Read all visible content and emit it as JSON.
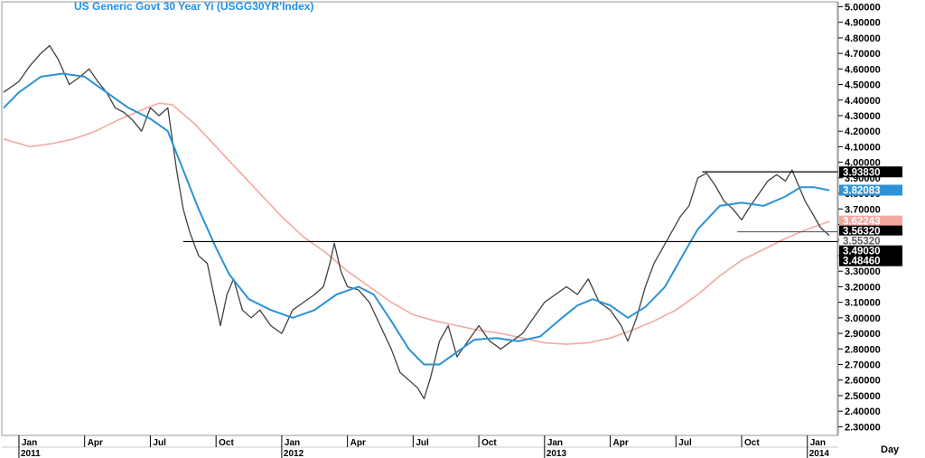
{
  "chart_data": {
    "type": "line",
    "title": "US  Generic  Govt  30  Year  Yi  (USGG30YR'Index)",
    "x_unit_label": "Day",
    "ylim": [
      2.25,
      5.02
    ],
    "y_ticks": [
      "5.00000",
      "4.90000",
      "4.80000",
      "4.70000",
      "4.60000",
      "4.50000",
      "4.40000",
      "4.30000",
      "4.20000",
      "4.10000",
      "4.00000",
      "3.90000",
      "3.80000",
      "3.70000",
      "3.60000",
      "3.50000",
      "3.40000",
      "3.30000",
      "3.20000",
      "3.10000",
      "3.00000",
      "2.90000",
      "2.80000",
      "2.70000",
      "2.60000",
      "2.50000",
      "2.40000",
      "2.30000"
    ],
    "x_ticks": [
      {
        "label": "Jan",
        "year": "2011",
        "t": 0
      },
      {
        "label": "Apr",
        "t": 3
      },
      {
        "label": "Jul",
        "t": 6
      },
      {
        "label": "Oct",
        "t": 9
      },
      {
        "label": "Jan",
        "year": "2012",
        "t": 12
      },
      {
        "label": "Apr",
        "t": 15
      },
      {
        "label": "Jul",
        "t": 18
      },
      {
        "label": "Oct",
        "t": 21
      },
      {
        "label": "Jan",
        "year": "2013",
        "t": 24
      },
      {
        "label": "Apr",
        "t": 27
      },
      {
        "label": "Jul",
        "t": 30
      },
      {
        "label": "Oct",
        "t": 33
      },
      {
        "label": "Jan",
        "year": "2014",
        "t": 36
      }
    ],
    "x_range_months": [
      -0.7,
      37.0
    ],
    "series": [
      {
        "role": "price",
        "color": "#404040",
        "points": [
          [
            -0.7,
            4.45
          ],
          [
            0.0,
            4.52
          ],
          [
            0.5,
            4.62
          ],
          [
            1.0,
            4.7
          ],
          [
            1.4,
            4.75
          ],
          [
            1.8,
            4.66
          ],
          [
            2.3,
            4.5
          ],
          [
            2.8,
            4.55
          ],
          [
            3.2,
            4.6
          ],
          [
            3.6,
            4.52
          ],
          [
            4.0,
            4.45
          ],
          [
            4.4,
            4.35
          ],
          [
            4.8,
            4.32
          ],
          [
            5.2,
            4.27
          ],
          [
            5.6,
            4.2
          ],
          [
            6.0,
            4.35
          ],
          [
            6.4,
            4.3
          ],
          [
            6.8,
            4.35
          ],
          [
            7.2,
            3.95
          ],
          [
            7.5,
            3.7
          ],
          [
            7.8,
            3.55
          ],
          [
            8.2,
            3.4
          ],
          [
            8.6,
            3.35
          ],
          [
            8.9,
            3.15
          ],
          [
            9.2,
            2.95
          ],
          [
            9.5,
            3.15
          ],
          [
            9.8,
            3.25
          ],
          [
            10.2,
            3.05
          ],
          [
            10.6,
            3.0
          ],
          [
            11.0,
            3.05
          ],
          [
            11.5,
            2.95
          ],
          [
            12.0,
            2.9
          ],
          [
            12.5,
            3.05
          ],
          [
            13.0,
            3.1
          ],
          [
            13.5,
            3.15
          ],
          [
            13.9,
            3.2
          ],
          [
            14.2,
            3.35
          ],
          [
            14.4,
            3.48
          ],
          [
            14.7,
            3.3
          ],
          [
            15.0,
            3.2
          ],
          [
            15.5,
            3.18
          ],
          [
            16.0,
            3.1
          ],
          [
            16.5,
            2.95
          ],
          [
            17.0,
            2.8
          ],
          [
            17.4,
            2.65
          ],
          [
            17.8,
            2.6
          ],
          [
            18.2,
            2.55
          ],
          [
            18.5,
            2.48
          ],
          [
            18.8,
            2.62
          ],
          [
            19.2,
            2.85
          ],
          [
            19.6,
            2.95
          ],
          [
            20.0,
            2.75
          ],
          [
            20.5,
            2.85
          ],
          [
            21.0,
            2.95
          ],
          [
            21.5,
            2.85
          ],
          [
            22.0,
            2.8
          ],
          [
            22.5,
            2.85
          ],
          [
            23.0,
            2.9
          ],
          [
            23.5,
            3.0
          ],
          [
            24.0,
            3.1
          ],
          [
            24.5,
            3.15
          ],
          [
            25.0,
            3.2
          ],
          [
            25.5,
            3.15
          ],
          [
            26.0,
            3.25
          ],
          [
            26.5,
            3.1
          ],
          [
            27.0,
            3.05
          ],
          [
            27.5,
            2.95
          ],
          [
            27.8,
            2.85
          ],
          [
            28.2,
            3.0
          ],
          [
            28.6,
            3.2
          ],
          [
            29.0,
            3.35
          ],
          [
            29.4,
            3.45
          ],
          [
            29.8,
            3.55
          ],
          [
            30.2,
            3.65
          ],
          [
            30.6,
            3.72
          ],
          [
            31.0,
            3.9
          ],
          [
            31.4,
            3.93
          ],
          [
            31.8,
            3.85
          ],
          [
            32.2,
            3.75
          ],
          [
            32.6,
            3.7
          ],
          [
            33.0,
            3.63
          ],
          [
            33.4,
            3.72
          ],
          [
            33.8,
            3.8
          ],
          [
            34.2,
            3.88
          ],
          [
            34.6,
            3.92
          ],
          [
            35.0,
            3.88
          ],
          [
            35.3,
            3.95
          ],
          [
            35.6,
            3.85
          ],
          [
            35.9,
            3.75
          ],
          [
            36.2,
            3.68
          ],
          [
            36.6,
            3.58
          ],
          [
            37.0,
            3.53
          ]
        ]
      },
      {
        "role": "moving-average-short",
        "color": "#2b93d6",
        "points": [
          [
            -0.7,
            4.35
          ],
          [
            0.0,
            4.45
          ],
          [
            1.0,
            4.55
          ],
          [
            2.0,
            4.57
          ],
          [
            3.0,
            4.55
          ],
          [
            4.0,
            4.45
          ],
          [
            5.0,
            4.35
          ],
          [
            6.0,
            4.28
          ],
          [
            6.8,
            4.2
          ],
          [
            7.5,
            3.95
          ],
          [
            8.2,
            3.7
          ],
          [
            9.0,
            3.45
          ],
          [
            9.6,
            3.28
          ],
          [
            10.5,
            3.12
          ],
          [
            11.5,
            3.05
          ],
          [
            12.5,
            3.0
          ],
          [
            13.5,
            3.05
          ],
          [
            14.5,
            3.15
          ],
          [
            15.5,
            3.2
          ],
          [
            16.2,
            3.15
          ],
          [
            17.0,
            2.98
          ],
          [
            17.8,
            2.8
          ],
          [
            18.5,
            2.7
          ],
          [
            19.2,
            2.7
          ],
          [
            20.0,
            2.78
          ],
          [
            20.8,
            2.86
          ],
          [
            21.8,
            2.87
          ],
          [
            22.8,
            2.85
          ],
          [
            23.8,
            2.88
          ],
          [
            24.8,
            3.0
          ],
          [
            25.5,
            3.08
          ],
          [
            26.2,
            3.12
          ],
          [
            27.0,
            3.08
          ],
          [
            27.8,
            3.0
          ],
          [
            28.6,
            3.07
          ],
          [
            29.5,
            3.2
          ],
          [
            30.3,
            3.4
          ],
          [
            31.0,
            3.57
          ],
          [
            32.0,
            3.72
          ],
          [
            33.0,
            3.74
          ],
          [
            34.0,
            3.72
          ],
          [
            35.0,
            3.78
          ],
          [
            35.7,
            3.84
          ],
          [
            36.3,
            3.84
          ],
          [
            37.0,
            3.82
          ]
        ]
      },
      {
        "role": "moving-average-long",
        "color": "#f4a8a0",
        "points": [
          [
            -0.7,
            4.15
          ],
          [
            0.5,
            4.1
          ],
          [
            1.5,
            4.12
          ],
          [
            2.5,
            4.15
          ],
          [
            3.5,
            4.2
          ],
          [
            4.5,
            4.27
          ],
          [
            5.5,
            4.33
          ],
          [
            6.4,
            4.38
          ],
          [
            7.0,
            4.37
          ],
          [
            8.0,
            4.25
          ],
          [
            9.0,
            4.1
          ],
          [
            10.0,
            3.95
          ],
          [
            11.0,
            3.8
          ],
          [
            12.0,
            3.65
          ],
          [
            13.0,
            3.52
          ],
          [
            14.0,
            3.42
          ],
          [
            15.0,
            3.3
          ],
          [
            16.0,
            3.2
          ],
          [
            17.0,
            3.1
          ],
          [
            18.0,
            3.02
          ],
          [
            19.0,
            2.98
          ],
          [
            20.0,
            2.95
          ],
          [
            21.0,
            2.92
          ],
          [
            22.0,
            2.9
          ],
          [
            23.0,
            2.87
          ],
          [
            24.0,
            2.84
          ],
          [
            25.0,
            2.83
          ],
          [
            26.0,
            2.84
          ],
          [
            27.0,
            2.87
          ],
          [
            28.0,
            2.92
          ],
          [
            29.0,
            2.98
          ],
          [
            30.0,
            3.05
          ],
          [
            31.0,
            3.15
          ],
          [
            32.0,
            3.27
          ],
          [
            33.0,
            3.37
          ],
          [
            34.0,
            3.44
          ],
          [
            35.0,
            3.51
          ],
          [
            36.0,
            3.57
          ],
          [
            37.0,
            3.62
          ]
        ]
      }
    ],
    "reference_lines": [
      {
        "y": 3.4903,
        "x_start": 7.5,
        "x_end": 37.0,
        "color": "#000000"
      },
      {
        "y": 3.9383,
        "x_start": 31.2,
        "x_end": 37.0,
        "color": "#000000"
      },
      {
        "y": 3.5532,
        "x_start": 32.8,
        "x_end": 37.0,
        "color": "#606060"
      }
    ],
    "value_labels": [
      {
        "value": "3.93830",
        "y": 3.9383,
        "bg": "#000000",
        "fg": "#ffffff"
      },
      {
        "value": "3.82083",
        "y": 3.82083,
        "bg": "#2b93d6",
        "fg": "#ffffff"
      },
      {
        "value": "3.62243",
        "y": 3.62243,
        "bg": "#f4a8a0",
        "fg": "#ffffff"
      },
      {
        "value": "3.56320",
        "y": 3.5632,
        "bg": "#000000",
        "fg": "#ffffff"
      },
      {
        "value": "3.55320",
        "y": 3.5532,
        "bg": "#ffffff",
        "fg": "#606060"
      },
      {
        "value": "3.49030",
        "y": 3.4903,
        "bg": "#000000",
        "fg": "#ffffff"
      },
      {
        "value": "3.48460",
        "y": 3.4846,
        "bg": "#000000",
        "fg": "#ffffff"
      }
    ]
  }
}
